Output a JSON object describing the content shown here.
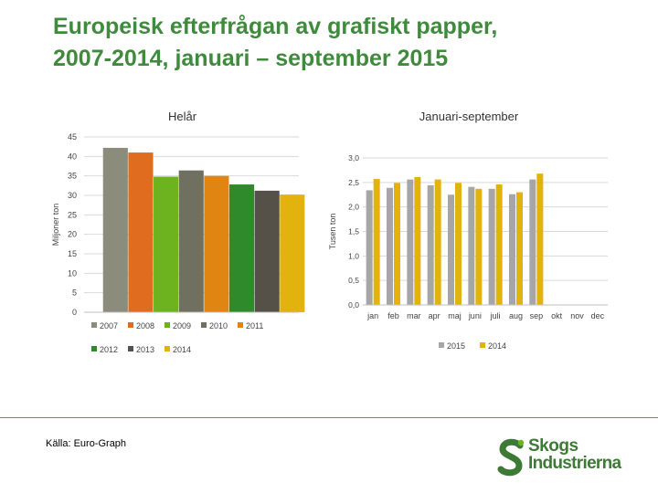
{
  "title": {
    "line1": "Europeisk efterfrågan av grafiskt papper,",
    "line2": "2007-2014, januari – september 2015"
  },
  "source": "Källa: Euro-Graph",
  "logo": {
    "line1": "Skogs",
    "line2": "Industrierna"
  },
  "chart_data": [
    {
      "type": "bar",
      "title": "Helår",
      "ylabel": "Miljoner ton",
      "xlabel": "",
      "ylim": [
        0,
        45
      ],
      "yticks": [
        "0",
        "5",
        "10",
        "15",
        "20",
        "25",
        "30",
        "35",
        "40",
        "45"
      ],
      "grid": true,
      "legend": "bottom",
      "series": [
        {
          "name": "2007",
          "value": 42.2,
          "color": "#8c8c7c"
        },
        {
          "name": "2008",
          "value": 41.0,
          "color": "#e06c1f"
        },
        {
          "name": "2009",
          "value": 34.8,
          "color": "#6db31f"
        },
        {
          "name": "2010",
          "value": 36.4,
          "color": "#707060"
        },
        {
          "name": "2011",
          "value": 35.0,
          "color": "#e08412"
        },
        {
          "name": "2012",
          "value": 32.8,
          "color": "#2e8a2a"
        },
        {
          "name": "2013",
          "value": 31.2,
          "color": "#555048"
        },
        {
          "name": "2014",
          "value": 30.2,
          "color": "#e2b20d"
        }
      ]
    },
    {
      "type": "bar",
      "title": "Januari-september",
      "ylabel": "Tusen ton",
      "xlabel": "",
      "ylim": [
        0,
        3
      ],
      "yticks": [
        "0,0",
        "0,5",
        "1,0",
        "1,5",
        "2,0",
        "2,5",
        "3,0"
      ],
      "grid": true,
      "legend": "bottom",
      "categories": [
        "jan",
        "feb",
        "mar",
        "apr",
        "maj",
        "juni",
        "juli",
        "aug",
        "sep",
        "okt",
        "nov",
        "dec"
      ],
      "series": [
        {
          "name": "2015",
          "color": "#a6a6a6",
          "values": [
            2.34,
            2.39,
            2.56,
            2.44,
            2.25,
            2.41,
            2.37,
            2.26,
            2.56,
            null,
            null,
            null
          ]
        },
        {
          "name": "2014",
          "color": "#e2b20d",
          "values": [
            2.57,
            2.49,
            2.61,
            2.56,
            2.49,
            2.37,
            2.46,
            2.3,
            2.68,
            null,
            null,
            null
          ]
        }
      ]
    }
  ]
}
